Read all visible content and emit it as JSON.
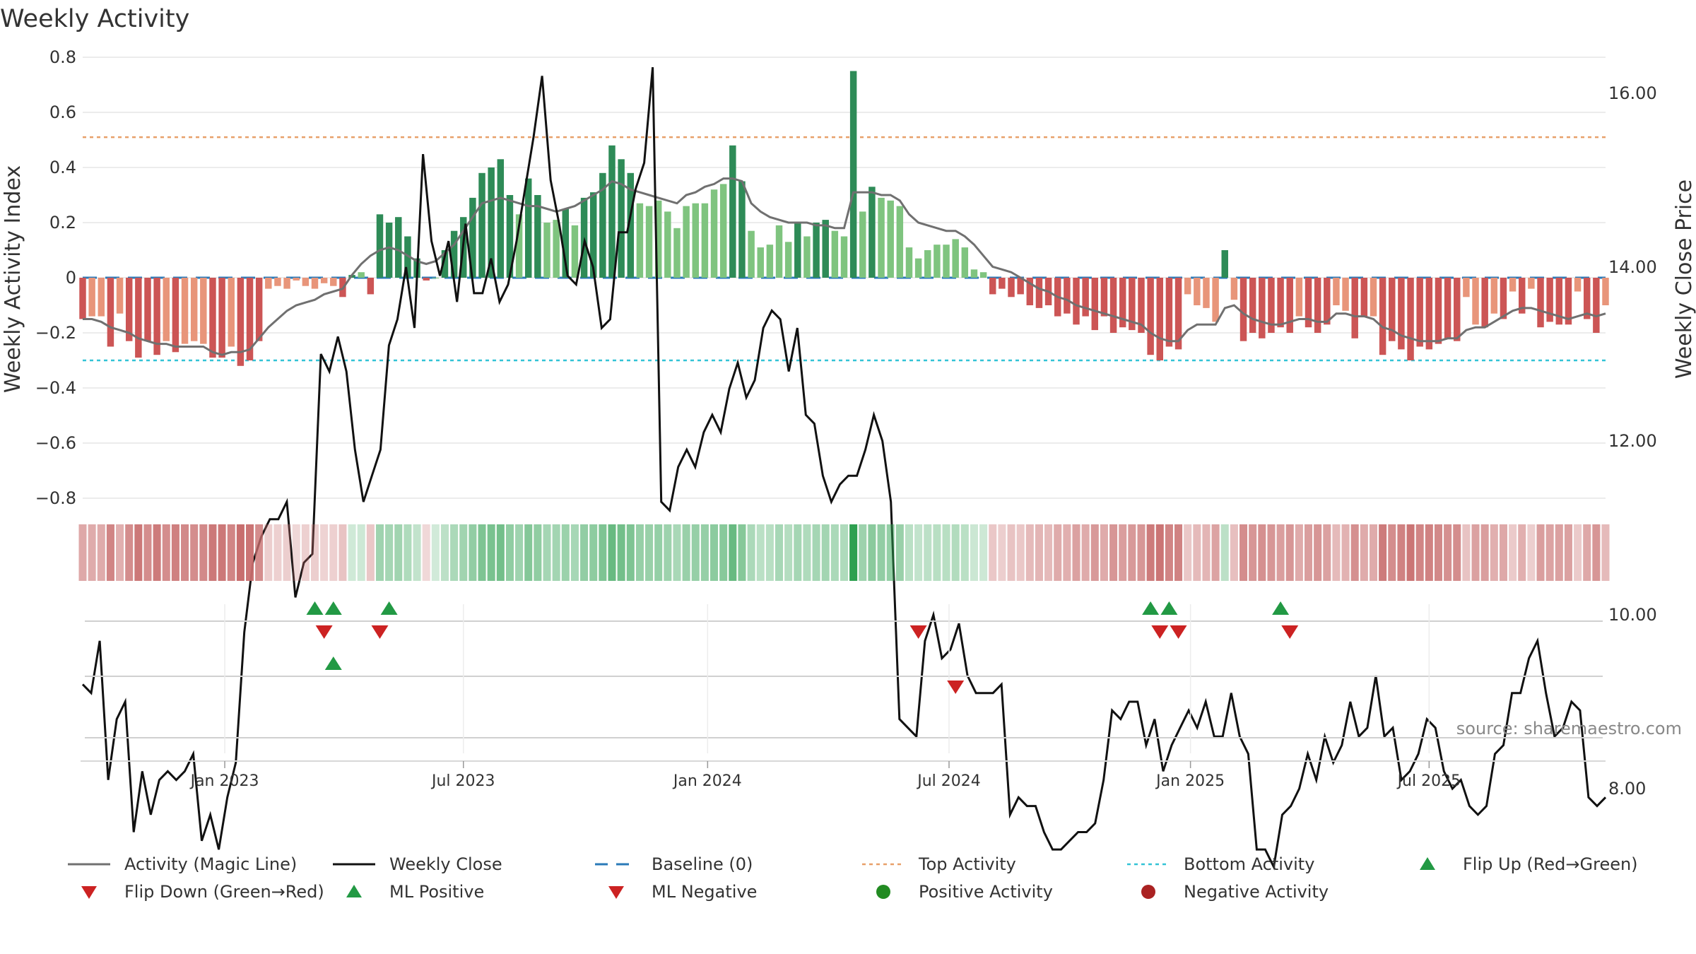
{
  "chart_data": {
    "type": "bar",
    "title": "Weekly Activity",
    "ylabel_left": "Weekly Activity Index",
    "ylabel_right": "Weekly Close Price",
    "ylim_left": [
      -0.9,
      0.8
    ],
    "yticks_left": [
      "0.8",
      "0.6",
      "0.4",
      "0.2",
      "0",
      "−0.2",
      "−0.4",
      "−0.6",
      "−0.8"
    ],
    "yticks_left_values": [
      0.8,
      0.6,
      0.4,
      0.2,
      0,
      -0.2,
      -0.4,
      -0.6,
      -0.8
    ],
    "ylim_right": [
      6.5,
      17.5
    ],
    "yticks_right": [
      "16.00",
      "14.00",
      "12.00",
      "10.00",
      "8.00"
    ],
    "yticks_right_values": [
      16,
      14,
      12,
      10,
      8
    ],
    "x_ticks": [
      "Jan 2023",
      "Jul 2023",
      "Jan 2024",
      "Jul 2024",
      "Jan 2025",
      "Jul 2025"
    ],
    "x_tick_weeks": [
      15.3,
      41,
      67.3,
      93.3,
      119.3,
      145
    ],
    "top_activity": 0.51,
    "bottom_activity": -0.3,
    "baseline": 0,
    "activity": [
      -0.15,
      -0.14,
      -0.14,
      -0.25,
      -0.13,
      -0.23,
      -0.29,
      -0.23,
      -0.28,
      -0.23,
      -0.27,
      -0.24,
      -0.23,
      -0.24,
      -0.29,
      -0.29,
      -0.25,
      -0.32,
      -0.3,
      -0.23,
      -0.04,
      -0.03,
      -0.04,
      -0.01,
      -0.03,
      -0.04,
      -0.02,
      -0.03,
      -0.07,
      0.01,
      0.02,
      -0.06,
      0.23,
      0.2,
      0.22,
      0.15,
      0.07,
      -0.01,
      0.0,
      0.1,
      0.17,
      0.22,
      0.29,
      0.38,
      0.4,
      0.43,
      0.3,
      0.23,
      0.36,
      0.3,
      0.2,
      0.21,
      0.25,
      0.19,
      0.29,
      0.31,
      0.38,
      0.48,
      0.43,
      0.38,
      0.27,
      0.26,
      0.28,
      0.24,
      0.18,
      0.26,
      0.27,
      0.27,
      0.32,
      0.34,
      0.48,
      0.35,
      0.17,
      0.11,
      0.12,
      0.19,
      0.13,
      0.2,
      0.15,
      0.2,
      0.21,
      0.17,
      0.15,
      0.75,
      0.24,
      0.33,
      0.29,
      0.28,
      0.26,
      0.11,
      0.07,
      0.1,
      0.12,
      0.12,
      0.14,
      0.11,
      0.03,
      0.02,
      -0.06,
      -0.04,
      -0.07,
      -0.06,
      -0.1,
      -0.11,
      -0.1,
      -0.14,
      -0.13,
      -0.17,
      -0.14,
      -0.19,
      -0.14,
      -0.2,
      -0.18,
      -0.19,
      -0.2,
      -0.28,
      -0.3,
      -0.25,
      -0.26,
      -0.06,
      -0.1,
      -0.11,
      -0.16,
      0.1,
      -0.08,
      -0.23,
      -0.2,
      -0.22,
      -0.2,
      -0.18,
      -0.2,
      -0.14,
      -0.18,
      -0.2,
      -0.17,
      -0.1,
      -0.12,
      -0.22,
      -0.14,
      -0.14,
      -0.28,
      -0.23,
      -0.26,
      -0.3,
      -0.25,
      -0.26,
      -0.24,
      -0.22,
      -0.23,
      -0.07,
      -0.17,
      -0.18,
      -0.13,
      -0.15,
      -0.05,
      -0.13,
      -0.04,
      -0.18,
      -0.16,
      -0.17,
      -0.17,
      -0.05,
      -0.15,
      -0.2,
      -0.1
    ],
    "magic_line": [
      -0.15,
      -0.15,
      -0.16,
      -0.18,
      -0.19,
      -0.2,
      -0.22,
      -0.23,
      -0.24,
      -0.24,
      -0.25,
      -0.25,
      -0.25,
      -0.25,
      -0.27,
      -0.28,
      -0.27,
      -0.27,
      -0.26,
      -0.22,
      -0.18,
      -0.15,
      -0.12,
      -0.1,
      -0.09,
      -0.08,
      -0.06,
      -0.05,
      -0.04,
      0.01,
      0.05,
      0.08,
      0.1,
      0.11,
      0.1,
      0.08,
      0.06,
      0.05,
      0.06,
      0.09,
      0.12,
      0.17,
      0.22,
      0.27,
      0.28,
      0.29,
      0.28,
      0.27,
      0.26,
      0.26,
      0.25,
      0.24,
      0.25,
      0.26,
      0.28,
      0.3,
      0.32,
      0.35,
      0.34,
      0.32,
      0.31,
      0.3,
      0.29,
      0.28,
      0.27,
      0.3,
      0.31,
      0.33,
      0.34,
      0.36,
      0.36,
      0.35,
      0.27,
      0.24,
      0.22,
      0.21,
      0.2,
      0.2,
      0.2,
      0.19,
      0.19,
      0.18,
      0.18,
      0.31,
      0.31,
      0.31,
      0.3,
      0.3,
      0.28,
      0.23,
      0.2,
      0.19,
      0.18,
      0.17,
      0.17,
      0.15,
      0.12,
      0.08,
      0.04,
      0.03,
      0.02,
      0.0,
      -0.02,
      -0.04,
      -0.05,
      -0.07,
      -0.08,
      -0.1,
      -0.11,
      -0.12,
      -0.13,
      -0.14,
      -0.15,
      -0.16,
      -0.17,
      -0.2,
      -0.22,
      -0.23,
      -0.23,
      -0.19,
      -0.17,
      -0.17,
      -0.17,
      -0.11,
      -0.1,
      -0.13,
      -0.15,
      -0.16,
      -0.17,
      -0.17,
      -0.16,
      -0.15,
      -0.15,
      -0.16,
      -0.16,
      -0.13,
      -0.13,
      -0.14,
      -0.14,
      -0.15,
      -0.18,
      -0.19,
      -0.21,
      -0.22,
      -0.23,
      -0.23,
      -0.23,
      -0.22,
      -0.22,
      -0.19,
      -0.18,
      -0.18,
      -0.16,
      -0.14,
      -0.12,
      -0.11,
      -0.11,
      -0.12,
      -0.13,
      -0.14,
      -0.15,
      -0.14,
      -0.13,
      -0.14,
      -0.13
    ],
    "weekly_close": [
      9.2,
      9.1,
      9.7,
      8.1,
      8.8,
      9.0,
      7.5,
      8.2,
      7.7,
      8.1,
      8.2,
      8.1,
      8.2,
      8.4,
      7.4,
      7.7,
      7.3,
      7.9,
      8.3,
      9.8,
      10.6,
      10.9,
      11.1,
      11.1,
      11.3,
      10.2,
      10.6,
      10.7,
      13.0,
      12.8,
      13.2,
      12.8,
      11.9,
      11.3,
      11.6,
      11.9,
      13.1,
      13.4,
      14.0,
      13.3,
      15.3,
      14.3,
      13.9,
      14.3,
      13.6,
      14.5,
      13.7,
      13.7,
      14.1,
      13.6,
      13.8,
      14.3,
      14.9,
      15.5,
      16.2,
      15.0,
      14.5,
      13.9,
      13.8,
      14.3,
      14.0,
      13.3,
      13.4,
      14.4,
      14.4,
      14.9,
      15.2,
      16.3,
      11.3,
      11.2,
      11.7,
      11.9,
      11.7,
      12.1,
      12.3,
      12.1,
      12.6,
      12.9,
      12.5,
      12.7,
      13.3,
      13.5,
      13.4,
      12.8,
      13.3,
      12.3,
      12.2,
      11.6,
      11.3,
      11.5,
      11.6,
      11.6,
      11.9,
      12.3,
      12.0,
      11.3,
      8.8,
      8.7,
      8.6,
      9.7,
      10.0,
      9.5,
      9.6,
      9.9,
      9.3,
      9.1,
      9.1,
      9.1,
      9.2,
      7.7,
      7.9,
      7.8,
      7.8,
      7.5,
      7.3,
      7.3,
      7.4,
      7.5,
      7.5,
      7.6,
      8.1,
      8.9,
      8.8,
      9.0,
      9.0,
      8.5,
      8.8,
      8.2,
      8.5,
      8.7,
      8.9,
      8.7,
      9.0,
      8.6,
      8.6,
      9.1,
      8.6,
      8.4,
      7.3,
      7.3,
      7.1,
      7.7,
      7.8,
      8.0,
      8.4,
      8.1,
      8.6,
      8.3,
      8.5,
      9.0,
      8.6,
      8.7,
      9.3,
      8.6,
      8.7,
      8.1,
      8.2,
      8.4,
      8.8,
      8.7,
      8.2,
      8.0,
      8.1,
      7.8,
      7.7,
      7.8,
      8.4,
      8.5,
      9.1,
      9.1,
      9.5,
      9.7,
      9.1,
      8.6,
      8.7,
      9.0,
      8.9,
      7.9,
      7.8,
      7.9
    ],
    "flip_up_row1": [
      25,
      27,
      33,
      115,
      117,
      129
    ],
    "flip_down_row1": [
      26,
      32,
      90,
      116,
      118,
      130
    ],
    "ml_positive_row2": [
      27
    ],
    "ml_negative_row2": [
      94
    ],
    "legend": [
      "Activity (Magic Line)",
      "Weekly Close",
      "Baseline (0)",
      "Top Activity",
      "Bottom Activity",
      "Flip Up (Red→Green)",
      "Flip Down (Green→Red)",
      "ML Positive",
      "ML Negative",
      "Positive Activity",
      "Negative Activity"
    ],
    "source": "source: sharemaestro.com"
  },
  "colors": {
    "pos_dark": "#2e8b57",
    "pos_light": "#7fc47f",
    "neg_dark": "#cc5555",
    "neg_light": "#e8957a",
    "magic": "#707070",
    "close": "#111111",
    "baseline": "#2a7ab8",
    "top": "#e8a06a",
    "bottom": "#33c3d6",
    "flip_up": "#229944",
    "flip_down": "#cc2222",
    "pos_dot": "#228b22",
    "neg_dot": "#aa2222",
    "grid": "#e6e6e6"
  }
}
